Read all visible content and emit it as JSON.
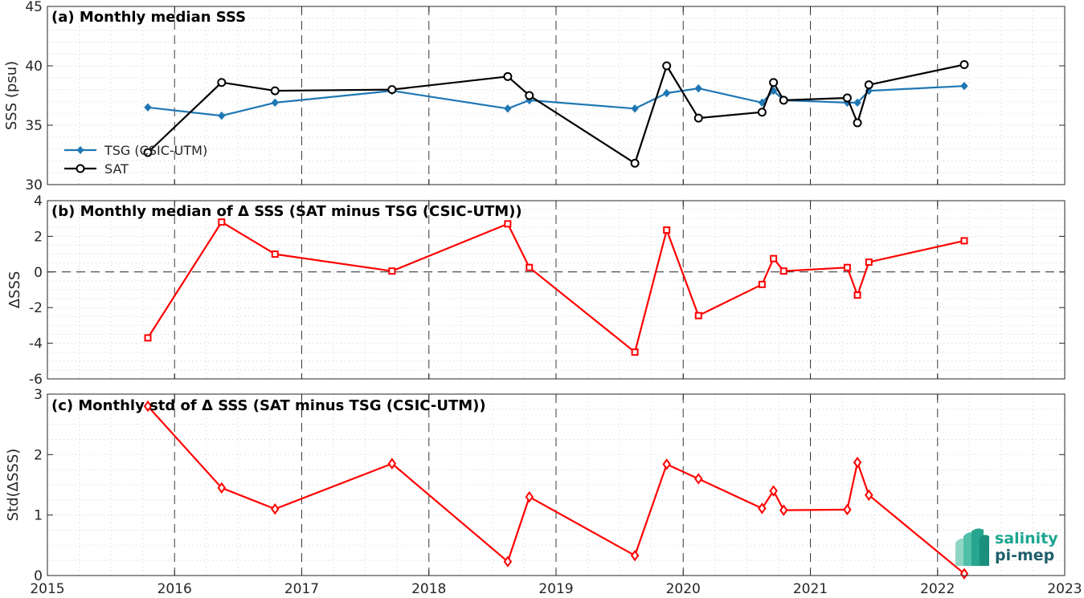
{
  "colors": {
    "tsg": "#1f77b4",
    "sat": "#000000",
    "delta": "#ff0000",
    "logo_teal": "#1ba58f",
    "logo_dark": "#1f5f6b"
  },
  "logo": {
    "line1": "salinity",
    "line2": "pi-mep"
  },
  "chart_data": [
    {
      "type": "line",
      "title": "(a) Monthly median SSS",
      "xlabel": "",
      "ylabel": "SSS (psu)",
      "xlim": [
        2015,
        2023
      ],
      "ylim": [
        30,
        45
      ],
      "xticks": [
        2015,
        2016,
        2017,
        2018,
        2019,
        2020,
        2021,
        2022,
        2023
      ],
      "yticks": [
        30,
        35,
        40,
        45
      ],
      "grid": true,
      "legend": "left",
      "series": [
        {
          "name": "TSG (CSIC-UTM)",
          "marker": "diamond",
          "x": [
            2015.79,
            2016.37,
            2016.79,
            2017.71,
            2018.62,
            2018.79,
            2019.62,
            2019.87,
            2020.12,
            2020.62,
            2020.71,
            2020.79,
            2021.29,
            2021.37,
            2021.46,
            2022.21
          ],
          "values": [
            36.5,
            35.8,
            36.9,
            37.9,
            36.4,
            37.1,
            36.4,
            37.7,
            38.1,
            36.9,
            37.9,
            37.1,
            36.9,
            36.9,
            37.9,
            38.3
          ]
        },
        {
          "name": "SAT",
          "marker": "circle",
          "x": [
            2015.79,
            2016.37,
            2016.79,
            2017.71,
            2018.62,
            2018.79,
            2019.62,
            2019.87,
            2020.12,
            2020.62,
            2020.71,
            2020.79,
            2021.29,
            2021.37,
            2021.46,
            2022.21
          ],
          "values": [
            32.7,
            38.6,
            37.9,
            38.0,
            39.1,
            37.5,
            31.8,
            40.0,
            35.6,
            36.1,
            38.6,
            37.1,
            37.3,
            35.2,
            38.4,
            40.1
          ]
        }
      ]
    },
    {
      "type": "line",
      "title": "(b) Monthly median of Δ SSS (SAT minus TSG (CSIC-UTM))",
      "xlabel": "",
      "ylabel": "ΔSSS",
      "xlim": [
        2015,
        2023
      ],
      "ylim": [
        -6,
        4
      ],
      "xticks": [
        2015,
        2016,
        2017,
        2018,
        2019,
        2020,
        2021,
        2022,
        2023
      ],
      "yticks": [
        -6,
        -4,
        -2,
        0,
        2,
        4
      ],
      "grid": true,
      "zero_line": true,
      "series": [
        {
          "marker": "square",
          "x": [
            2015.79,
            2016.37,
            2016.79,
            2017.71,
            2018.62,
            2018.79,
            2019.62,
            2019.87,
            2020.12,
            2020.62,
            2020.71,
            2020.79,
            2021.29,
            2021.37,
            2021.46,
            2022.21
          ],
          "values": [
            -3.7,
            2.8,
            1.0,
            0.05,
            2.7,
            0.25,
            -4.5,
            2.35,
            -2.45,
            -0.7,
            0.75,
            0.05,
            0.25,
            -1.3,
            0.55,
            1.75
          ]
        }
      ]
    },
    {
      "type": "line",
      "title": "(c) Monthly std of Δ SSS (SAT minus TSG (CSIC-UTM))",
      "xlabel": "",
      "ylabel": "Std(ΔSSS)",
      "xlim": [
        2015,
        2023
      ],
      "ylim": [
        0,
        3
      ],
      "xticks": [
        2015,
        2016,
        2017,
        2018,
        2019,
        2020,
        2021,
        2022,
        2023
      ],
      "yticks": [
        0,
        1,
        2,
        3
      ],
      "grid": true,
      "series": [
        {
          "marker": "diamond",
          "x": [
            2015.79,
            2016.37,
            2016.79,
            2017.71,
            2018.62,
            2018.79,
            2019.62,
            2019.87,
            2020.12,
            2020.62,
            2020.71,
            2020.79,
            2021.29,
            2021.37,
            2021.46,
            2022.21
          ],
          "values": [
            2.8,
            1.45,
            1.1,
            1.85,
            0.23,
            1.3,
            0.33,
            1.84,
            1.6,
            1.11,
            1.4,
            1.08,
            1.09,
            1.87,
            1.33,
            0.03
          ]
        }
      ]
    }
  ]
}
